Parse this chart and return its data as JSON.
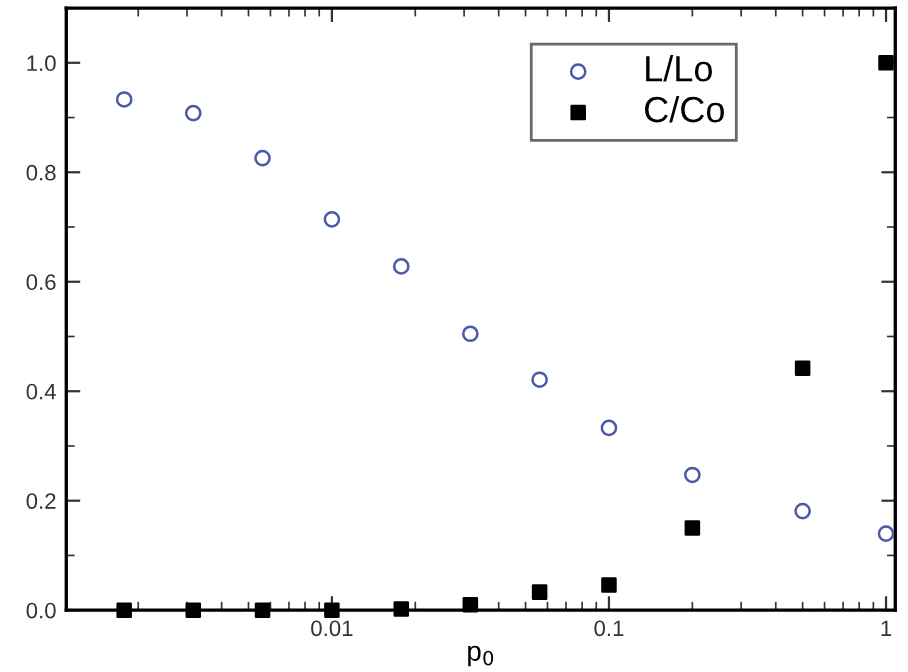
{
  "chart_data": {
    "type": "scatter",
    "xlabel": "p$_{0}$",
    "log": "x",
    "x": [
      0.00178,
      0.00316,
      0.00562,
      0.01,
      0.0178,
      0.0316,
      0.0562,
      0.1,
      0.2,
      0.5,
      1
    ],
    "series": [
      {
        "name": "L/Lo",
        "color": "#4a5aa8",
        "marker": "circle",
        "values": [
          0.933,
          0.908,
          0.826,
          0.714,
          0.628,
          0.505,
          0.421,
          0.333,
          0.247,
          0.181,
          0.14
        ]
      },
      {
        "name": "C/Co",
        "color": "#000000",
        "marker": "square",
        "values": [
          0,
          0,
          0,
          0,
          0.002,
          0.01,
          0.033,
          0.046,
          0.15,
          0.442,
          1.0
        ]
      }
    ],
    "xlim": [
      0.0011,
      1.08
    ],
    "xticks": [
      0.01,
      0.1,
      1
    ],
    "ylim": [
      0,
      1.1
    ],
    "yticks": [
      {
        "value": 0,
        "label": "0.0"
      },
      0.2,
      0.4,
      0.6,
      0.8,
      {
        "value": 1,
        "label": "1.0"
      }
    ],
    "grid": false,
    "legend": "top right"
  }
}
